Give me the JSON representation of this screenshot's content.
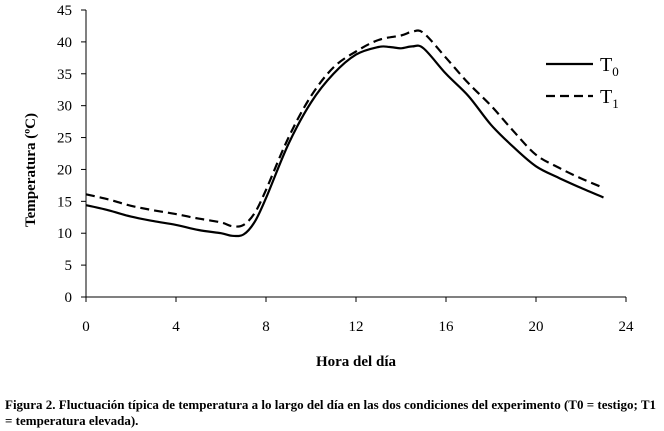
{
  "chart_data": {
    "type": "line",
    "xlabel": "Hora del día",
    "ylabel": "Temperatura (ºC)",
    "xlim": [
      0,
      24
    ],
    "ylim": [
      0,
      45
    ],
    "xticks": [
      0,
      4,
      8,
      12,
      16,
      20,
      24
    ],
    "yticks": [
      0,
      5,
      10,
      15,
      20,
      25,
      30,
      35,
      40,
      45
    ],
    "grid": false,
    "legend_position": "right",
    "series": [
      {
        "name": "T0",
        "name_main": "T",
        "name_sub": "0",
        "style": "solid",
        "x": [
          0,
          1,
          2,
          3,
          4,
          5,
          6,
          6.5,
          7,
          7.5,
          8,
          9,
          10,
          11,
          12,
          13,
          13.5,
          14,
          14.5,
          15,
          16,
          17,
          18,
          19,
          20,
          21,
          22,
          23
        ],
        "y": [
          14.4,
          13.6,
          12.6,
          11.9,
          11.3,
          10.5,
          10.0,
          9.6,
          9.8,
          11.8,
          15.5,
          24.0,
          30.5,
          35.0,
          38.0,
          39.2,
          39.2,
          39.0,
          39.3,
          39.0,
          35.0,
          31.5,
          27.0,
          23.5,
          20.5,
          18.7,
          17.1,
          15.6
        ]
      },
      {
        "name": "T1",
        "name_main": "T",
        "name_sub": "1",
        "style": "dashed",
        "x": [
          0,
          1,
          2,
          3,
          4,
          5,
          6,
          6.5,
          7,
          7.5,
          8,
          9,
          10,
          11,
          12,
          13,
          14,
          14.5,
          15,
          16,
          17,
          18,
          19,
          20,
          21,
          22,
          23
        ],
        "y": [
          16.1,
          15.3,
          14.3,
          13.6,
          13.0,
          12.3,
          11.7,
          11.1,
          11.3,
          13.2,
          16.8,
          25.0,
          31.5,
          36.0,
          38.5,
          40.3,
          41.0,
          41.6,
          41.4,
          37.5,
          33.5,
          30.0,
          26.0,
          22.3,
          20.3,
          18.6,
          17.1
        ]
      }
    ]
  },
  "caption": "Figura 2. Fluctuación típica de temperatura a lo largo del día en las dos condiciones del experimento (T0 = testigo; T1 = temperatura elevada)."
}
